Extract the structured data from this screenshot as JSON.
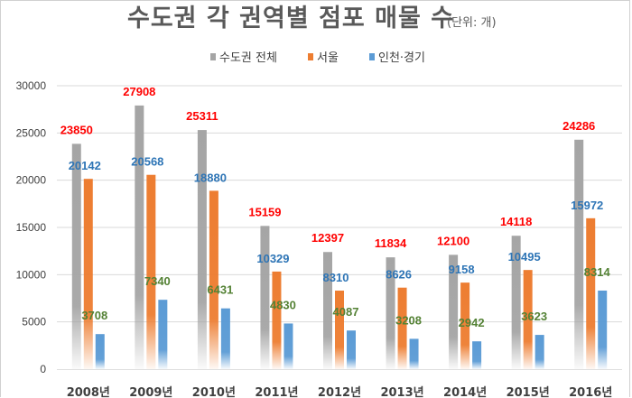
{
  "chart_data": {
    "type": "bar",
    "title": "수도권 각 권역별 점포 매물 수",
    "subtitle": "(단위: 개)",
    "categories": [
      "2008년",
      "2009년",
      "2010년",
      "2011년",
      "2012년",
      "2013년",
      "2014년",
      "2015년",
      "2016년"
    ],
    "series": [
      {
        "name": "수도권 전체",
        "color": "#a5a5a5",
        "label_color": "#ff0000",
        "values": [
          23850,
          27908,
          25311,
          15159,
          12397,
          11834,
          12100,
          14118,
          24286
        ]
      },
      {
        "name": "서울",
        "color": "#ed7d31",
        "label_color": "#2e75b6",
        "values": [
          20142,
          20568,
          18880,
          10329,
          8310,
          8626,
          9158,
          10495,
          15972
        ]
      },
      {
        "name": "인천·경기",
        "color": "#5b9bd5",
        "label_color": "#548235",
        "values": [
          3708,
          7340,
          6431,
          4830,
          4087,
          3208,
          2942,
          3623,
          8314
        ]
      }
    ],
    "yticks": [
      0,
      5000,
      10000,
      15000,
      20000,
      25000,
      30000
    ],
    "ylim": [
      0,
      30000
    ],
    "legend": "top",
    "grid": true,
    "xlabel": "",
    "ylabel": ""
  }
}
